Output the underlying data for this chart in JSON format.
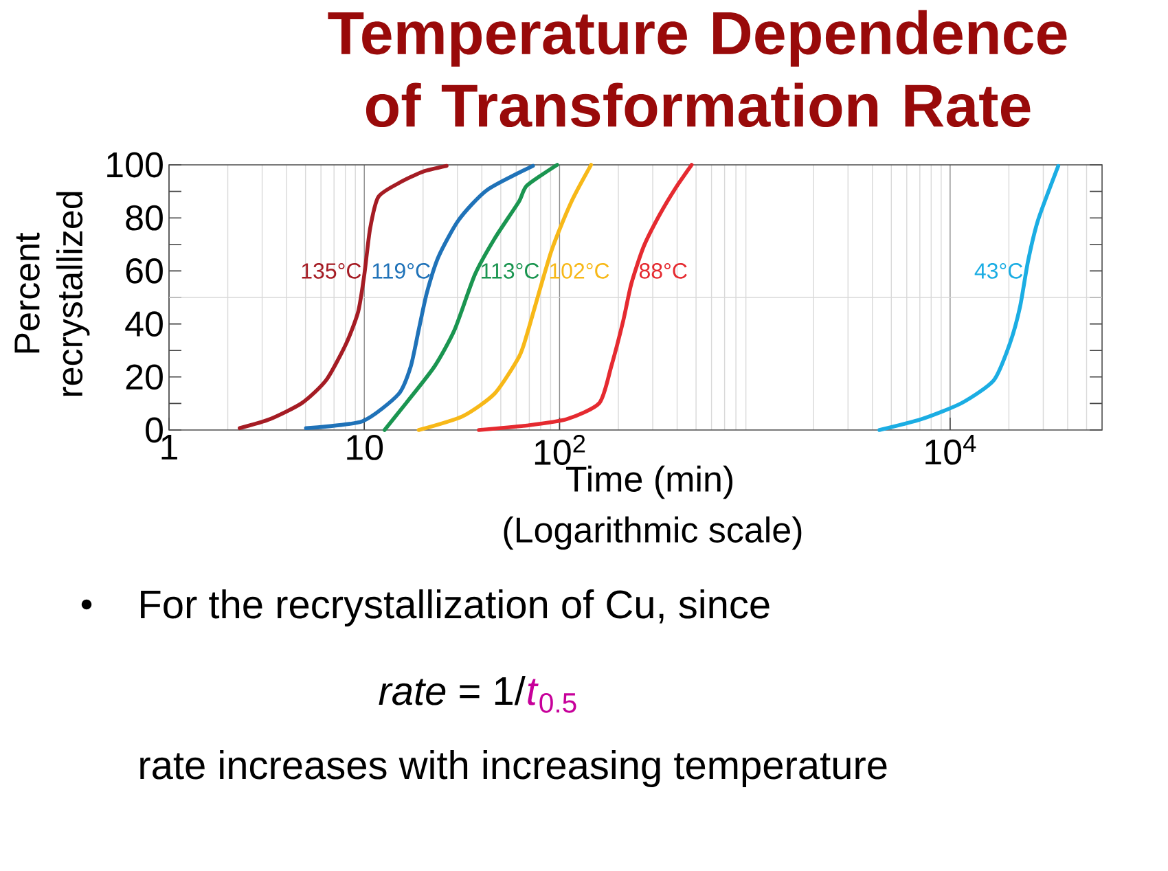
{
  "chart_data": {
    "type": "line",
    "title": "Temperature Dependence of Transformation Rate",
    "xlabel": "Time (min)",
    "ylabel": "Percent recrystallized",
    "log": "x",
    "grid": "x",
    "xlim": [
      1,
      60000
    ],
    "ylim": [
      0,
      100
    ],
    "xticks": [
      1,
      10,
      {
        "value": 100,
        "label": "10$^{2}$"
      },
      {
        "value": 10000,
        "label": "10$^{4}$"
      }
    ],
    "yticks": [
      0,
      {
        "value": 10,
        "label": null
      },
      20,
      {
        "value": 30,
        "label": null
      },
      40,
      {
        "value": 50,
        "label": null
      },
      60,
      {
        "value": 70,
        "label": null
      },
      80,
      {
        "value": 90,
        "label": null
      },
      100
    ],
    "ref_lines": [
      {
        "axis": "y",
        "value": 50,
        "color": "#d9d9d9"
      }
    ],
    "annotations": [
      "(Logarithmic scale)",
      "For the recrystallization of Cu, since",
      "*rate* = 1/",
      "*t*$_{0.5}$",
      "rate increases with increasing temperature"
    ],
    "series": [
      {
        "name": "135°C",
        "color": "#a51c24",
        "x": [
          2.3,
          3.29,
          4.8,
          6.38,
          8.08,
          9.31,
          10.0,
          10.7,
          11.8,
          15.0,
          19.9,
          26.4
        ],
        "values": [
          0.7,
          4.1,
          10.2,
          18.8,
          32.6,
          44.7,
          58.5,
          75.8,
          87.9,
          93.1,
          97.4,
          99.6
        ]
      },
      {
        "name": "119°C",
        "color": "#1f72b8",
        "x": [
          5.03,
          9.77,
          15.0,
          17.3,
          19.0,
          20.9,
          24.0,
          30.5,
          42.5,
          73.1
        ],
        "values": [
          0.7,
          3.3,
          13.6,
          24.0,
          37.8,
          51.7,
          65.4,
          79.3,
          90.5,
          99.6
        ]
      },
      {
        "name": "113°C",
        "color": "#1a9550",
        "x": [
          12.7,
          16.4,
          22.9,
          29.0,
          36.8,
          46.6,
          61.9,
          68.1,
          97.2
        ],
        "values": [
          0,
          10.2,
          24.0,
          37.8,
          58.5,
          72.3,
          86.1,
          92.2,
          100
        ]
      },
      {
        "name": "102°C",
        "color": "#f7b818",
        "x": [
          19.0,
          31.9,
          46.6,
          61.9,
          68.1,
          90.5,
          115,
          145
        ],
        "values": [
          0,
          5.2,
          13.8,
          27.5,
          36.1,
          67.2,
          86.1,
          100
        ]
      },
      {
        "name": "88°C",
        "color": "#e52a30",
        "x": [
          38.6,
          68.1,
          109,
          160,
          184,
          212,
          233,
          269,
          325,
          394,
          475
        ],
        "values": [
          0,
          1.7,
          4.1,
          10.2,
          24.0,
          41.3,
          55.1,
          69.0,
          81.1,
          91.4,
          100
        ]
      },
      {
        "name": "43°C",
        "color": "#1badE3",
        "x": [
          4345,
          7140,
          11480,
          16750,
          20230,
          22800,
          25070,
          28250,
          35810
        ],
        "values": [
          0,
          4.1,
          10.2,
          18.8,
          32.6,
          46.4,
          63.7,
          79.3,
          99.6
        ]
      }
    ]
  }
}
